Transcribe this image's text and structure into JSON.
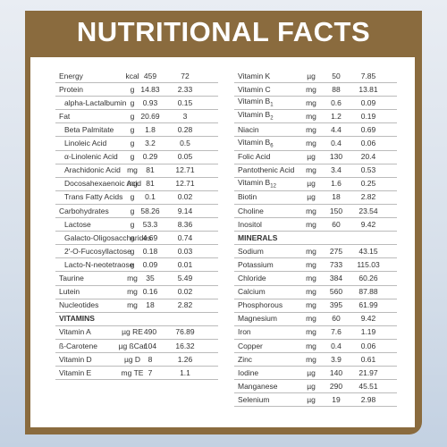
{
  "header": {
    "title": "NUTRITIONAL FACTS"
  },
  "left": {
    "rows": [
      {
        "name": "Energy",
        "unit": "kcal",
        "v1": "459",
        "v2": "72"
      },
      {
        "name": "Protein",
        "unit": "g",
        "v1": "14.83",
        "v2": "2.33"
      },
      {
        "name": "alpha-Lactalbumin",
        "unit": "g",
        "v1": "0.93",
        "v2": "0.15",
        "indent": true
      },
      {
        "name": "Fat",
        "unit": "g",
        "v1": "20.69",
        "v2": "3"
      },
      {
        "name": "Beta Palmitate",
        "unit": "g",
        "v1": "1.8",
        "v2": "0.28",
        "indent": true
      },
      {
        "name": "Linoleic Acid",
        "unit": "g",
        "v1": "3.2",
        "v2": "0.5",
        "indent": true
      },
      {
        "name": "α-Linolenic Acid",
        "unit": "g",
        "v1": "0.29",
        "v2": "0.05",
        "indent": true
      },
      {
        "name": "Arachidonic Acid",
        "unit": "mg",
        "v1": "81",
        "v2": "12.71",
        "indent": true
      },
      {
        "name": "Docosahexaenoic Acid",
        "unit": "mg",
        "v1": "81",
        "v2": "12.71",
        "indent": true
      },
      {
        "name": "Trans Fatty Acids",
        "unit": "g",
        "v1": "0.1",
        "v2": "0.02",
        "indent": true
      },
      {
        "name": "Carbohydrates",
        "unit": "g",
        "v1": "58.26",
        "v2": "9.14"
      },
      {
        "name": "Lactose",
        "unit": "g",
        "v1": "53.3",
        "v2": "8.36",
        "indent": true
      },
      {
        "name": "Galacto-Oligosaccharides",
        "unit": "g",
        "v1": "4.69",
        "v2": "0.74",
        "indent": true
      },
      {
        "name": "2'-O-Fucosyllactose",
        "unit": "g",
        "v1": "0.18",
        "v2": "0.03",
        "indent": true
      },
      {
        "name": "Lacto-N-neotetraose",
        "unit": "g",
        "v1": "0.09",
        "v2": "0.01",
        "indent": true
      },
      {
        "name": "Taurine",
        "unit": "mg",
        "v1": "35",
        "v2": "5.49"
      },
      {
        "name": "Lutein",
        "unit": "mg",
        "v1": "0.16",
        "v2": "0.02"
      },
      {
        "name": "Nucleotides",
        "unit": "mg",
        "v1": "18",
        "v2": "2.82"
      },
      {
        "heading": "VITAMINS"
      },
      {
        "name": "Vitamin A",
        "unit": "µg RE",
        "v1": "490",
        "v2": "76.89"
      },
      {
        "name": "ß-Carotene",
        "unit": "µg ßCar",
        "v1": "104",
        "v2": "16.32"
      },
      {
        "name": "Vitamin D",
        "unit": "µg D",
        "v1": "8",
        "v2": "1.26"
      },
      {
        "name": "Vitamin E",
        "unit": "mg TE",
        "v1": "7",
        "v2": "1.1"
      }
    ]
  },
  "right": {
    "rows": [
      {
        "name": "Vitamin K",
        "unit": "µg",
        "v1": "50",
        "v2": "7.85"
      },
      {
        "name": "Vitamin C",
        "unit": "mg",
        "v1": "88",
        "v2": "13.81"
      },
      {
        "name": "Vitamin B",
        "sub": "1",
        "unit": "mg",
        "v1": "0.6",
        "v2": "0.09"
      },
      {
        "name": "Vitamin B",
        "sub": "2",
        "unit": "mg",
        "v1": "1.2",
        "v2": "0.19"
      },
      {
        "name": "Niacin",
        "unit": "mg",
        "v1": "4.4",
        "v2": "0.69"
      },
      {
        "name": "Vitamin B",
        "sub": "6",
        "unit": "mg",
        "v1": "0.4",
        "v2": "0.06"
      },
      {
        "name": "Folic Acid",
        "unit": "µg",
        "v1": "130",
        "v2": "20.4"
      },
      {
        "name": "Pantothenic Acid",
        "unit": "mg",
        "v1": "3.4",
        "v2": "0.53"
      },
      {
        "name": "Vitamin B",
        "sub": "12",
        "unit": "µg",
        "v1": "1.6",
        "v2": "0.25"
      },
      {
        "name": "Biotin",
        "unit": "µg",
        "v1": "18",
        "v2": "2.82"
      },
      {
        "name": "Choline",
        "unit": "mg",
        "v1": "150",
        "v2": "23.54"
      },
      {
        "name": "Inositol",
        "unit": "mg",
        "v1": "60",
        "v2": "9.42"
      },
      {
        "heading": "MINERALS"
      },
      {
        "name": "Sodium",
        "unit": "mg",
        "v1": "275",
        "v2": "43.15"
      },
      {
        "name": "Potassium",
        "unit": "mg",
        "v1": "733",
        "v2": "115.03"
      },
      {
        "name": "Chloride",
        "unit": "mg",
        "v1": "384",
        "v2": "60.26"
      },
      {
        "name": "Calcium",
        "unit": "mg",
        "v1": "560",
        "v2": "87.88"
      },
      {
        "name": "Phosphorous",
        "unit": "mg",
        "v1": "395",
        "v2": "61.99"
      },
      {
        "name": "Magnesium",
        "unit": "mg",
        "v1": "60",
        "v2": "9.42"
      },
      {
        "name": "Iron",
        "unit": "mg",
        "v1": "7.6",
        "v2": "1.19"
      },
      {
        "name": "Copper",
        "unit": "mg",
        "v1": "0.4",
        "v2": "0.06"
      },
      {
        "name": "Zinc",
        "unit": "mg",
        "v1": "3.9",
        "v2": "0.61"
      },
      {
        "name": "Iodine",
        "unit": "µg",
        "v1": "140",
        "v2": "21.97"
      },
      {
        "name": "Manganese",
        "unit": "µg",
        "v1": "290",
        "v2": "45.51"
      },
      {
        "name": "Selenium",
        "unit": "µg",
        "v1": "19",
        "v2": "2.98"
      }
    ]
  }
}
